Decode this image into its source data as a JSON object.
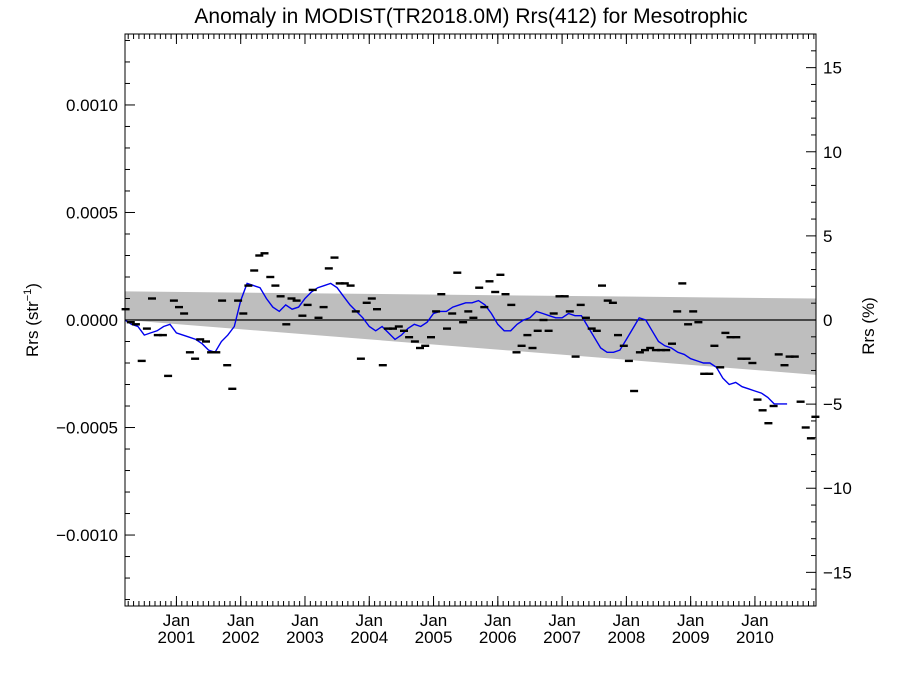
{
  "chart_data": {
    "type": "scatter",
    "title": "Anomaly in MODIST(TR2018.0M) Rrs(412) for Mesotrophic",
    "ylabel_left_main": "Rrs (str",
    "ylabel_left_sup": "−1",
    "ylabel_left_close": ")",
    "ylabel_right": "Rrs (%)",
    "left_axis": {
      "ylim": [
        -0.00133,
        0.00133
      ],
      "ticks": [
        0.001,
        0.0005,
        0.0,
        -0.0005,
        -0.001
      ],
      "tick_labels": [
        "0.0010",
        "0.0005",
        "0.0000",
        "−0.0005",
        "−0.0010"
      ]
    },
    "right_axis": {
      "ylim": [
        -17,
        17
      ],
      "ticks": [
        15,
        10,
        5,
        0,
        -5,
        -10,
        -15
      ],
      "tick_labels": [
        "15",
        "10",
        "5",
        "0",
        "−5",
        "−10",
        "−15"
      ]
    },
    "x_axis": {
      "xlim": [
        2000.2,
        2010.95
      ],
      "ticks": [
        2001.0,
        2002.0,
        2003.0,
        2004.0,
        2005.0,
        2006.0,
        2007.0,
        2008.0,
        2009.0,
        2010.0
      ],
      "tick_month": "Jan",
      "tick_years": [
        "2001",
        "2002",
        "2003",
        "2004",
        "2005",
        "2006",
        "2007",
        "2008",
        "2009",
        "2010"
      ]
    },
    "zero_line": 0,
    "uncertainty_band": {
      "x": [
        2000.2,
        2010.95
      ],
      "upper": [
        0.000133,
        0.0001
      ],
      "lower": [
        0.0,
        -0.000255
      ]
    },
    "series": [
      {
        "kind": "monthly-anomaly-markers",
        "color": "#000000",
        "points": [
          [
            2000.21,
            5e-05
          ],
          [
            2000.29,
            -1e-05
          ],
          [
            2000.37,
            -2e-05
          ],
          [
            2000.46,
            -0.00019
          ],
          [
            2000.54,
            -4e-05
          ],
          [
            2000.62,
            0.0001
          ],
          [
            2000.71,
            -7e-05
          ],
          [
            2000.79,
            -7e-05
          ],
          [
            2000.87,
            -0.00026
          ],
          [
            2000.96,
            9e-05
          ],
          [
            2001.04,
            6e-05
          ],
          [
            2001.12,
            3e-05
          ],
          [
            2001.21,
            -0.00015
          ],
          [
            2001.29,
            -0.00018
          ],
          [
            2001.37,
            -9e-05
          ],
          [
            2001.46,
            -0.0001
          ],
          [
            2001.54,
            -0.00015
          ],
          [
            2001.62,
            -0.00015
          ],
          [
            2001.71,
            9e-05
          ],
          [
            2001.79,
            -0.00021
          ],
          [
            2001.87,
            -0.00032
          ],
          [
            2001.96,
            9e-05
          ],
          [
            2002.04,
            3e-05
          ],
          [
            2002.12,
            0.00016
          ],
          [
            2002.21,
            0.00023
          ],
          [
            2002.29,
            0.0003
          ],
          [
            2002.37,
            0.00031
          ],
          [
            2002.46,
            0.0002
          ],
          [
            2002.54,
            0.00016
          ],
          [
            2002.62,
            0.00011
          ],
          [
            2002.71,
            -2e-05
          ],
          [
            2002.79,
            0.0001
          ],
          [
            2002.87,
            9e-05
          ],
          [
            2002.96,
            2e-05
          ],
          [
            2003.04,
            7e-05
          ],
          [
            2003.12,
            0.00014
          ],
          [
            2003.21,
            1e-05
          ],
          [
            2003.29,
            6e-05
          ],
          [
            2003.37,
            0.00024
          ],
          [
            2003.46,
            0.00029
          ],
          [
            2003.54,
            0.00017
          ],
          [
            2003.62,
            0.00017
          ],
          [
            2003.71,
            0.00016
          ],
          [
            2003.79,
            4e-05
          ],
          [
            2003.87,
            -0.00018
          ],
          [
            2003.96,
            8e-05
          ],
          [
            2004.04,
            0.0001
          ],
          [
            2004.12,
            5e-05
          ],
          [
            2004.21,
            -0.00021
          ],
          [
            2004.29,
            -4e-05
          ],
          [
            2004.37,
            -4e-05
          ],
          [
            2004.46,
            -3e-05
          ],
          [
            2004.54,
            -5e-05
          ],
          [
            2004.62,
            -8e-05
          ],
          [
            2004.71,
            -0.0001
          ],
          [
            2004.79,
            -0.00013
          ],
          [
            2004.87,
            -0.00012
          ],
          [
            2004.96,
            -8e-05
          ],
          [
            2005.04,
            4e-05
          ],
          [
            2005.12,
            0.00012
          ],
          [
            2005.21,
            -4e-05
          ],
          [
            2005.29,
            3e-05
          ],
          [
            2005.37,
            0.00022
          ],
          [
            2005.46,
            -1e-05
          ],
          [
            2005.54,
            4e-05
          ],
          [
            2005.62,
            1e-05
          ],
          [
            2005.71,
            0.00015
          ],
          [
            2005.79,
            6e-05
          ],
          [
            2005.87,
            0.00018
          ],
          [
            2005.96,
            0.00013
          ],
          [
            2006.04,
            0.00021
          ],
          [
            2006.12,
            0.00012
          ],
          [
            2006.21,
            7e-05
          ],
          [
            2006.29,
            -0.00015
          ],
          [
            2006.37,
            -0.00012
          ],
          [
            2006.46,
            -7e-05
          ],
          [
            2006.54,
            -0.00013
          ],
          [
            2006.62,
            -5e-05
          ],
          [
            2006.71,
            0.0
          ],
          [
            2006.79,
            -5e-05
          ],
          [
            2006.87,
            3e-05
          ],
          [
            2006.96,
            0.00011
          ],
          [
            2007.04,
            0.00011
          ],
          [
            2007.12,
            4e-05
          ],
          [
            2007.21,
            -0.00017
          ],
          [
            2007.29,
            7e-05
          ],
          [
            2007.37,
            1e-05
          ],
          [
            2007.46,
            -4e-05
          ],
          [
            2007.54,
            -5e-05
          ],
          [
            2007.62,
            0.00016
          ],
          [
            2007.71,
            9e-05
          ],
          [
            2007.79,
            8e-05
          ],
          [
            2007.87,
            -7e-05
          ],
          [
            2007.96,
            -0.00012
          ],
          [
            2008.04,
            -0.00019
          ],
          [
            2008.12,
            -0.00033
          ],
          [
            2008.21,
            -0.00015
          ],
          [
            2008.29,
            -0.00014
          ],
          [
            2008.37,
            -0.00013
          ],
          [
            2008.46,
            -0.00014
          ],
          [
            2008.54,
            -0.00014
          ],
          [
            2008.62,
            -0.00014
          ],
          [
            2008.71,
            -0.00011
          ],
          [
            2008.79,
            4e-05
          ],
          [
            2008.87,
            0.00017
          ],
          [
            2008.96,
            -2e-05
          ],
          [
            2009.04,
            4e-05
          ],
          [
            2009.12,
            -1e-05
          ],
          [
            2009.21,
            -0.00025
          ],
          [
            2009.29,
            -0.00025
          ],
          [
            2009.37,
            -0.00012
          ],
          [
            2009.46,
            -0.00022
          ],
          [
            2009.54,
            -6e-05
          ],
          [
            2009.62,
            -8e-05
          ],
          [
            2009.71,
            -8e-05
          ],
          [
            2009.79,
            -0.00018
          ],
          [
            2009.87,
            -0.00018
          ],
          [
            2009.96,
            -0.0002
          ],
          [
            2010.04,
            -0.00037
          ],
          [
            2010.12,
            -0.00042
          ],
          [
            2010.21,
            -0.00048
          ],
          [
            2010.29,
            -0.0004
          ],
          [
            2010.37,
            -0.00016
          ],
          [
            2010.46,
            -0.00021
          ],
          [
            2010.54,
            -0.00017
          ],
          [
            2010.62,
            -0.00017
          ],
          [
            2010.71,
            -0.00038
          ],
          [
            2010.79,
            -0.0005
          ],
          [
            2010.87,
            -0.00055
          ],
          [
            2010.94,
            -0.00045
          ]
        ]
      },
      {
        "kind": "running-mean",
        "color": "#0000ee",
        "points": [
          [
            2000.2,
            0.0
          ],
          [
            2000.3,
            -2e-05
          ],
          [
            2000.4,
            -3e-05
          ],
          [
            2000.5,
            -7e-05
          ],
          [
            2000.6,
            -6e-05
          ],
          [
            2000.7,
            -5e-05
          ],
          [
            2000.8,
            -3e-05
          ],
          [
            2000.9,
            -2e-05
          ],
          [
            2001.0,
            -6e-05
          ],
          [
            2001.1,
            -7e-05
          ],
          [
            2001.2,
            -8e-05
          ],
          [
            2001.3,
            -9e-05
          ],
          [
            2001.4,
            -0.00011
          ],
          [
            2001.5,
            -0.00014
          ],
          [
            2001.6,
            -0.00015
          ],
          [
            2001.7,
            -0.0001
          ],
          [
            2001.8,
            -7e-05
          ],
          [
            2001.9,
            -3e-05
          ],
          [
            2002.0,
            9e-05
          ],
          [
            2002.1,
            0.00017
          ],
          [
            2002.2,
            0.00016
          ],
          [
            2002.3,
            0.00015
          ],
          [
            2002.4,
            0.0001
          ],
          [
            2002.5,
            6e-05
          ],
          [
            2002.6,
            4e-05
          ],
          [
            2002.7,
            7e-05
          ],
          [
            2002.8,
            5e-05
          ],
          [
            2002.9,
            6e-05
          ],
          [
            2003.0,
            0.0001
          ],
          [
            2003.1,
            0.00013
          ],
          [
            2003.2,
            0.00015
          ],
          [
            2003.3,
            0.00016
          ],
          [
            2003.4,
            0.00017
          ],
          [
            2003.5,
            0.00015
          ],
          [
            2003.6,
            0.00011
          ],
          [
            2003.7,
            7e-05
          ],
          [
            2003.8,
            4e-05
          ],
          [
            2003.9,
            1e-05
          ],
          [
            2004.0,
            -3e-05
          ],
          [
            2004.1,
            -5e-05
          ],
          [
            2004.2,
            -3e-05
          ],
          [
            2004.3,
            -6e-05
          ],
          [
            2004.4,
            -9e-05
          ],
          [
            2004.5,
            -7e-05
          ],
          [
            2004.6,
            -4e-05
          ],
          [
            2004.7,
            -2e-05
          ],
          [
            2004.8,
            -3e-05
          ],
          [
            2004.9,
            -1e-05
          ],
          [
            2005.0,
            3e-05
          ],
          [
            2005.1,
            4e-05
          ],
          [
            2005.2,
            4e-05
          ],
          [
            2005.3,
            6e-05
          ],
          [
            2005.4,
            7e-05
          ],
          [
            2005.5,
            8e-05
          ],
          [
            2005.6,
            8e-05
          ],
          [
            2005.7,
            9e-05
          ],
          [
            2005.8,
            7e-05
          ],
          [
            2005.9,
            3e-05
          ],
          [
            2006.0,
            -2e-05
          ],
          [
            2006.1,
            -5e-05
          ],
          [
            2006.2,
            -5e-05
          ],
          [
            2006.3,
            -2e-05
          ],
          [
            2006.4,
            0.0
          ],
          [
            2006.5,
            1e-05
          ],
          [
            2006.6,
            4e-05
          ],
          [
            2006.7,
            3e-05
          ],
          [
            2006.8,
            2e-05
          ],
          [
            2006.9,
            1e-05
          ],
          [
            2007.0,
            1e-05
          ],
          [
            2007.1,
            3e-05
          ],
          [
            2007.2,
            2e-05
          ],
          [
            2007.3,
            2e-05
          ],
          [
            2007.4,
            -3e-05
          ],
          [
            2007.5,
            -8e-05
          ],
          [
            2007.6,
            -0.00013
          ],
          [
            2007.7,
            -0.00015
          ],
          [
            2007.8,
            -0.00015
          ],
          [
            2007.9,
            -0.00014
          ],
          [
            2008.0,
            -9e-05
          ],
          [
            2008.1,
            -4e-05
          ],
          [
            2008.2,
            1e-05
          ],
          [
            2008.3,
            0.0
          ],
          [
            2008.4,
            -5e-05
          ],
          [
            2008.5,
            -0.0001
          ],
          [
            2008.6,
            -0.00012
          ],
          [
            2008.7,
            -0.00013
          ],
          [
            2008.8,
            -0.00015
          ],
          [
            2008.9,
            -0.00016
          ],
          [
            2009.0,
            -0.00018
          ],
          [
            2009.1,
            -0.00019
          ],
          [
            2009.2,
            -0.0002
          ],
          [
            2009.3,
            -0.0002
          ],
          [
            2009.4,
            -0.00022
          ],
          [
            2009.5,
            -0.00027
          ],
          [
            2009.6,
            -0.0003
          ],
          [
            2009.7,
            -0.00029
          ],
          [
            2009.8,
            -0.00031
          ],
          [
            2009.9,
            -0.00032
          ],
          [
            2010.0,
            -0.00033
          ],
          [
            2010.1,
            -0.00034
          ],
          [
            2010.2,
            -0.00036
          ],
          [
            2010.3,
            -0.00039
          ],
          [
            2010.4,
            -0.00039
          ],
          [
            2010.5,
            -0.00039
          ]
        ]
      }
    ]
  }
}
